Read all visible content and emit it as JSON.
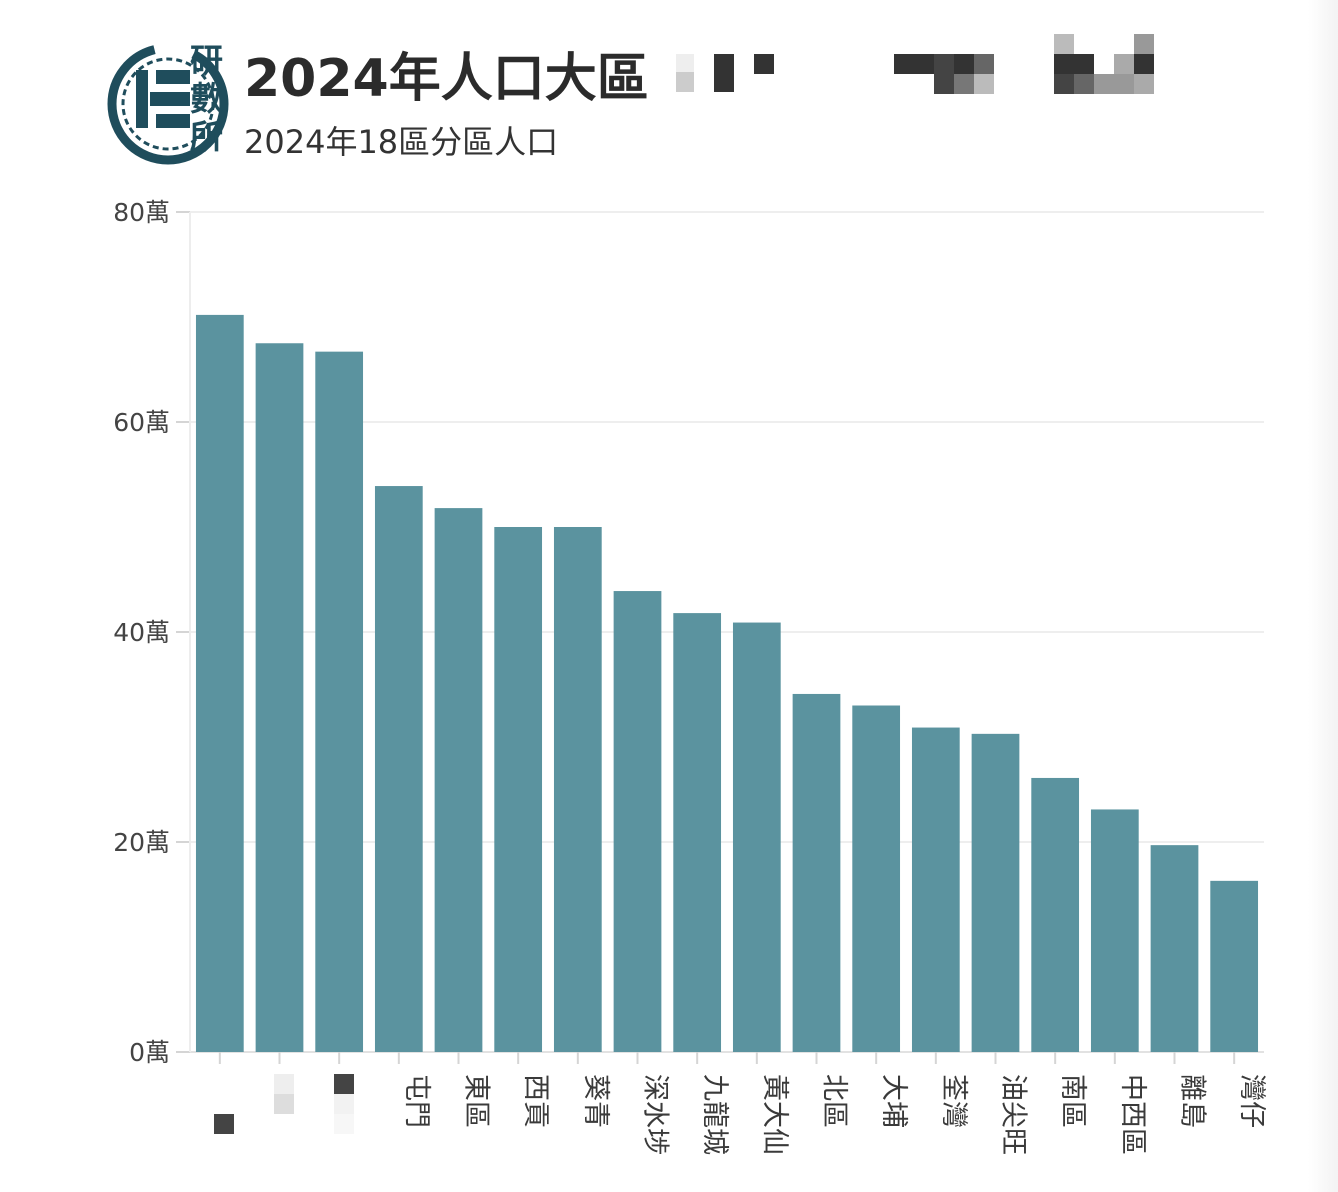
{
  "header": {
    "logo_chars": [
      "研",
      "數",
      "所"
    ],
    "title": "2024年人口大區",
    "subtitle": "2024年18區分區人口"
  },
  "colors": {
    "bar": "#5b939f",
    "grid": "#eeeeee",
    "logo": "#1f4d5c"
  },
  "chart_data": {
    "type": "bar",
    "title": "2024年人口大區",
    "subtitle": "2024年18區分區人口",
    "categories": [
      "",
      "",
      "",
      "屯門",
      "東區",
      "西貢",
      "葵青",
      "深水埗",
      "九龍城",
      "黃大仙",
      "北區",
      "大埔",
      "荃灣",
      "油尖旺",
      "南區",
      "中西區",
      "離島",
      "灣仔"
    ],
    "values": [
      70.2,
      67.5,
      66.7,
      53.9,
      51.8,
      50.0,
      50.0,
      43.9,
      41.8,
      40.9,
      34.1,
      33.0,
      30.9,
      30.3,
      26.1,
      23.1,
      19.7,
      16.3
    ],
    "unit": "萬",
    "ylim": [
      0,
      80
    ],
    "yticks": [
      0,
      20,
      40,
      60,
      80
    ],
    "ytick_labels": [
      "0萬",
      "20萬",
      "40萬",
      "60萬",
      "80萬"
    ],
    "grid": true,
    "legend": "none"
  }
}
